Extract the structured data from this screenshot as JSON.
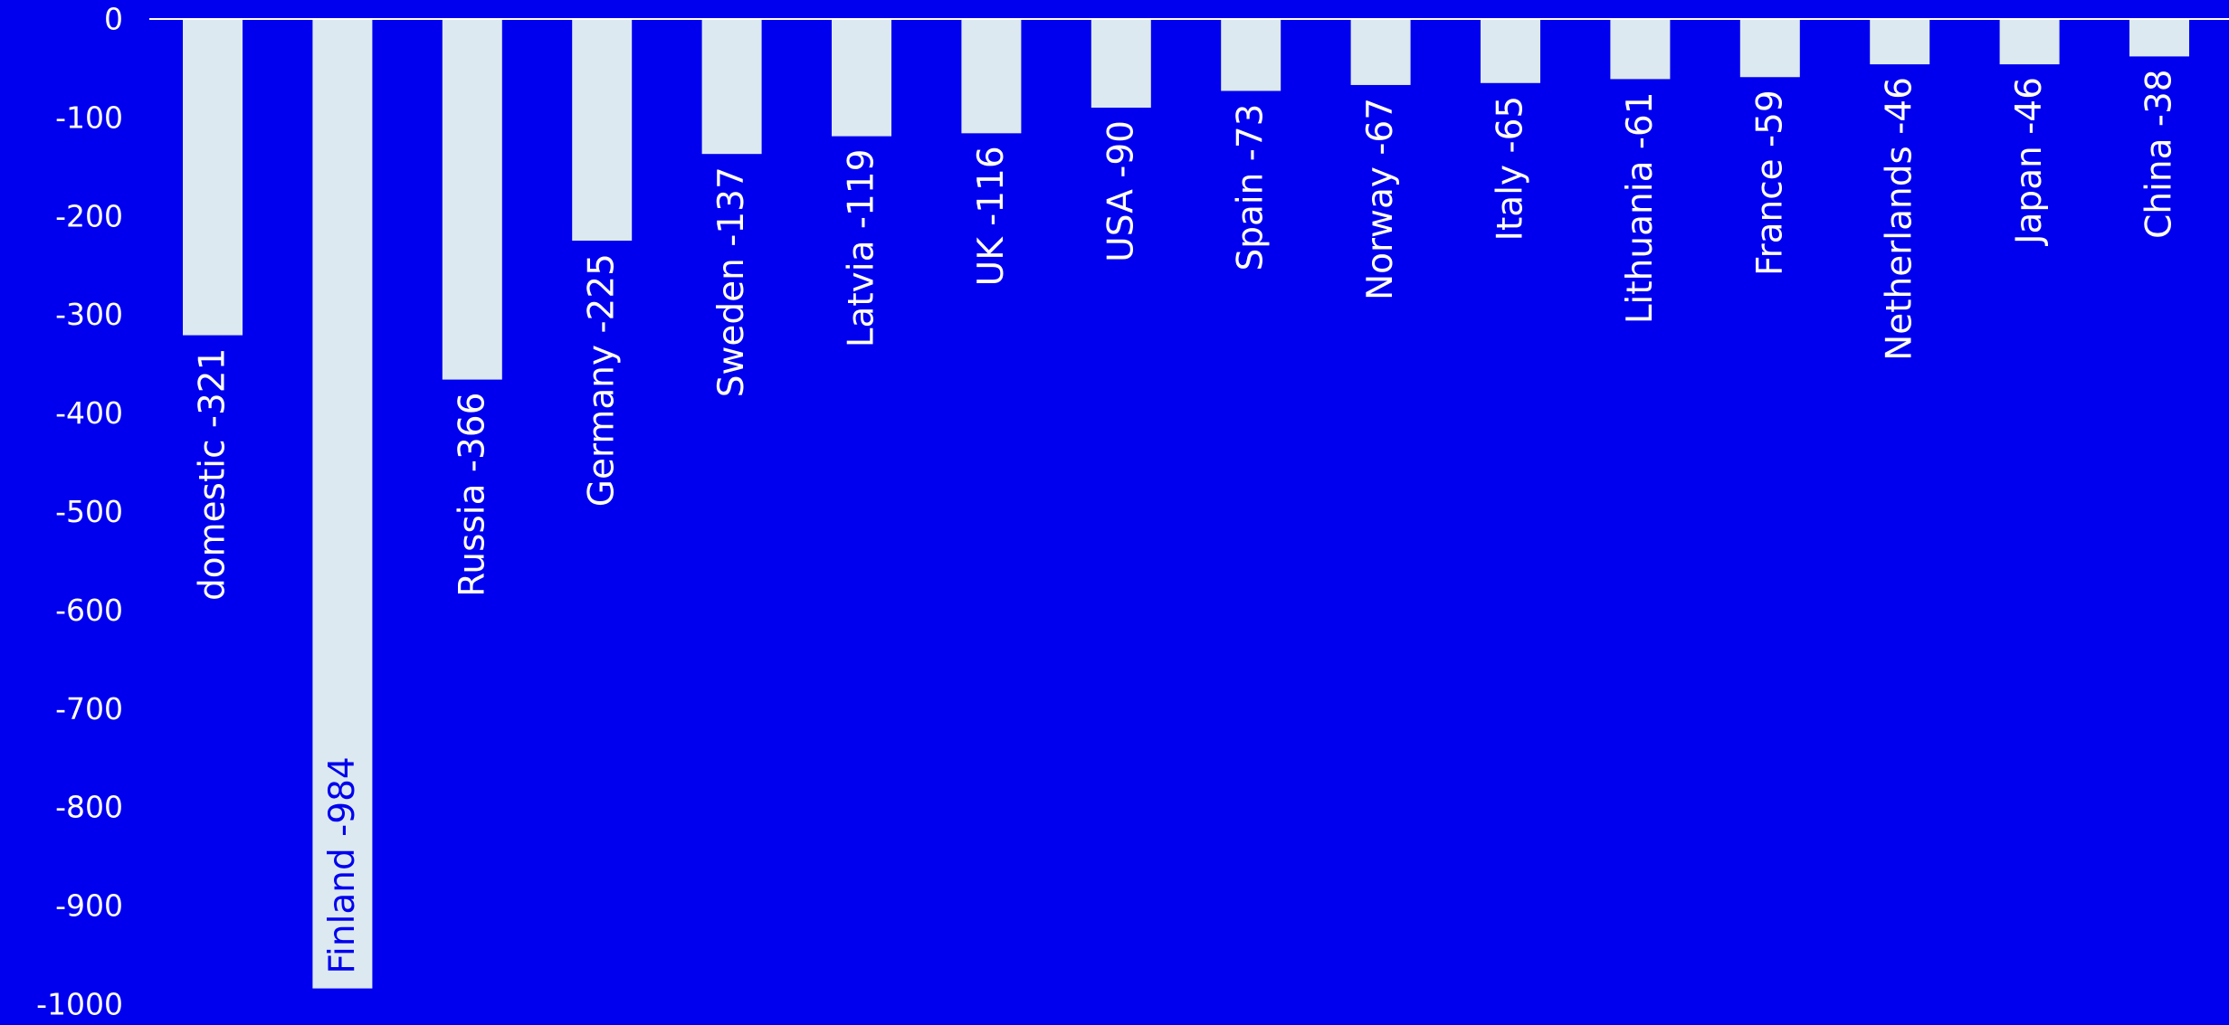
{
  "colors": {
    "background": "#0000ee",
    "bar_fill": "#dce9f1",
    "axis_text": "#ffffff",
    "label_outside": "#ffffff",
    "label_inside": "#0000ee",
    "baseline": "#ffffff"
  },
  "chart_data": {
    "type": "bar",
    "title": "",
    "xlabel": "",
    "ylabel": "",
    "ylim": [
      -1000,
      0
    ],
    "yticks": [
      0,
      -100,
      -200,
      -300,
      -400,
      -500,
      -600,
      -700,
      -800,
      -900,
      -1000
    ],
    "grid": false,
    "legend": "none",
    "categories": [
      "domestic",
      "Finland",
      "Russia",
      "Germany",
      "Sweden",
      "Latvia",
      "UK",
      "USA",
      "Spain",
      "Norway",
      "Italy",
      "Lithuania",
      "France",
      "Netherlands",
      "Japan",
      "China"
    ],
    "values": [
      -321,
      -984,
      -366,
      -225,
      -137,
      -119,
      -116,
      -90,
      -73,
      -67,
      -65,
      -61,
      -59,
      -46,
      -46,
      -38
    ],
    "bar_labels": [
      "domestic -321",
      "Finland -984",
      "Russia -366",
      "Germany -225",
      "Sweden -137",
      "Latvia -119",
      "UK -116",
      "USA -90",
      "Spain -73",
      "Norway -67",
      "Italy -65",
      "Lithuania -61",
      "France -59",
      "Netherlands -46",
      "Japan -46",
      "China -38"
    ],
    "label_inside": [
      false,
      true,
      false,
      false,
      false,
      false,
      false,
      false,
      false,
      false,
      false,
      false,
      false,
      false,
      false,
      false
    ]
  }
}
